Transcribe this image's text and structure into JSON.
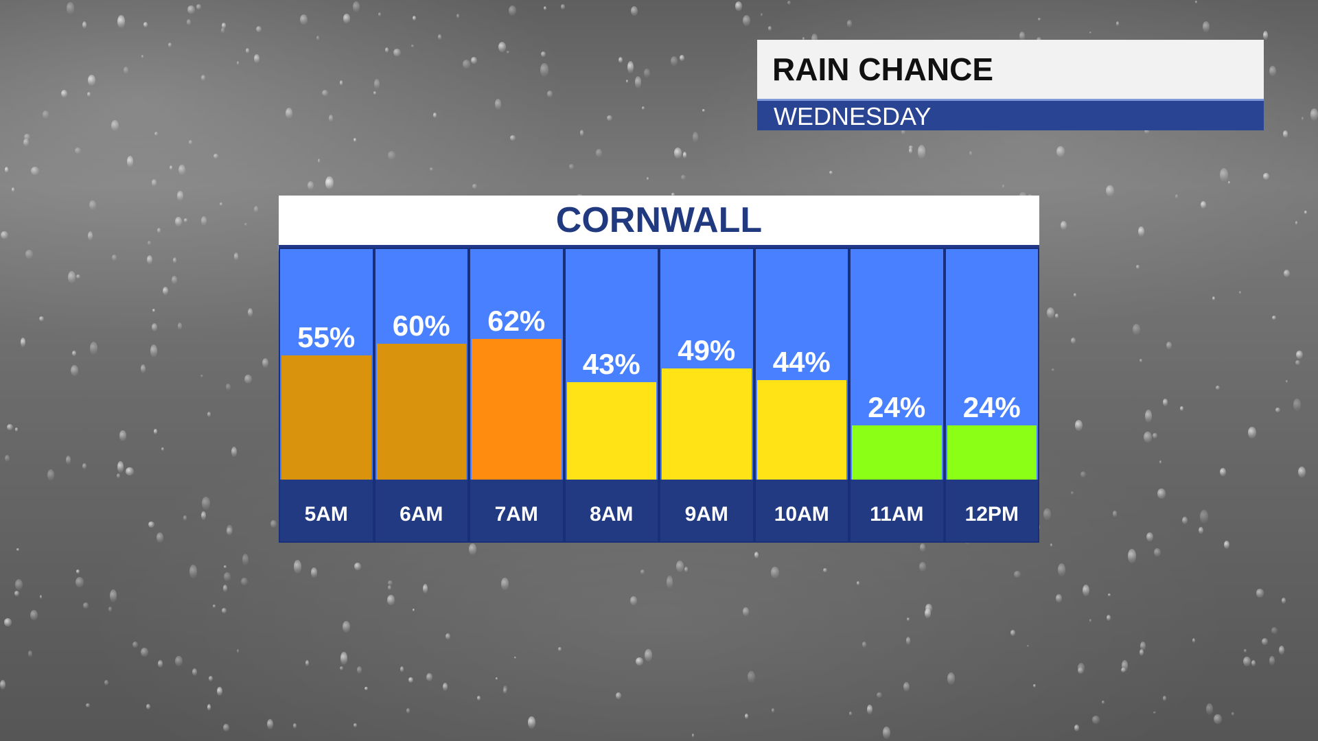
{
  "header": {
    "title": "RAIN CHANCE",
    "subtitle": "WEDNESDAY"
  },
  "panel": {
    "title": "CORNWALL"
  },
  "chart_data": {
    "type": "bar",
    "title": "CORNWALL",
    "categories": [
      "5AM",
      "6AM",
      "7AM",
      "8AM",
      "9AM",
      "10AM",
      "11AM",
      "12PM"
    ],
    "values": [
      55,
      60,
      62,
      43,
      49,
      44,
      24,
      24
    ],
    "value_labels": [
      "55%",
      "60%",
      "62%",
      "43%",
      "49%",
      "44%",
      "24%",
      "24%"
    ],
    "bar_colors": [
      "#d9930c",
      "#d9930c",
      "#ff8c0f",
      "#ffe316",
      "#ffe316",
      "#ffe316",
      "#8cff16",
      "#8cff16"
    ],
    "ylim": [
      0,
      100
    ],
    "grid": false
  }
}
